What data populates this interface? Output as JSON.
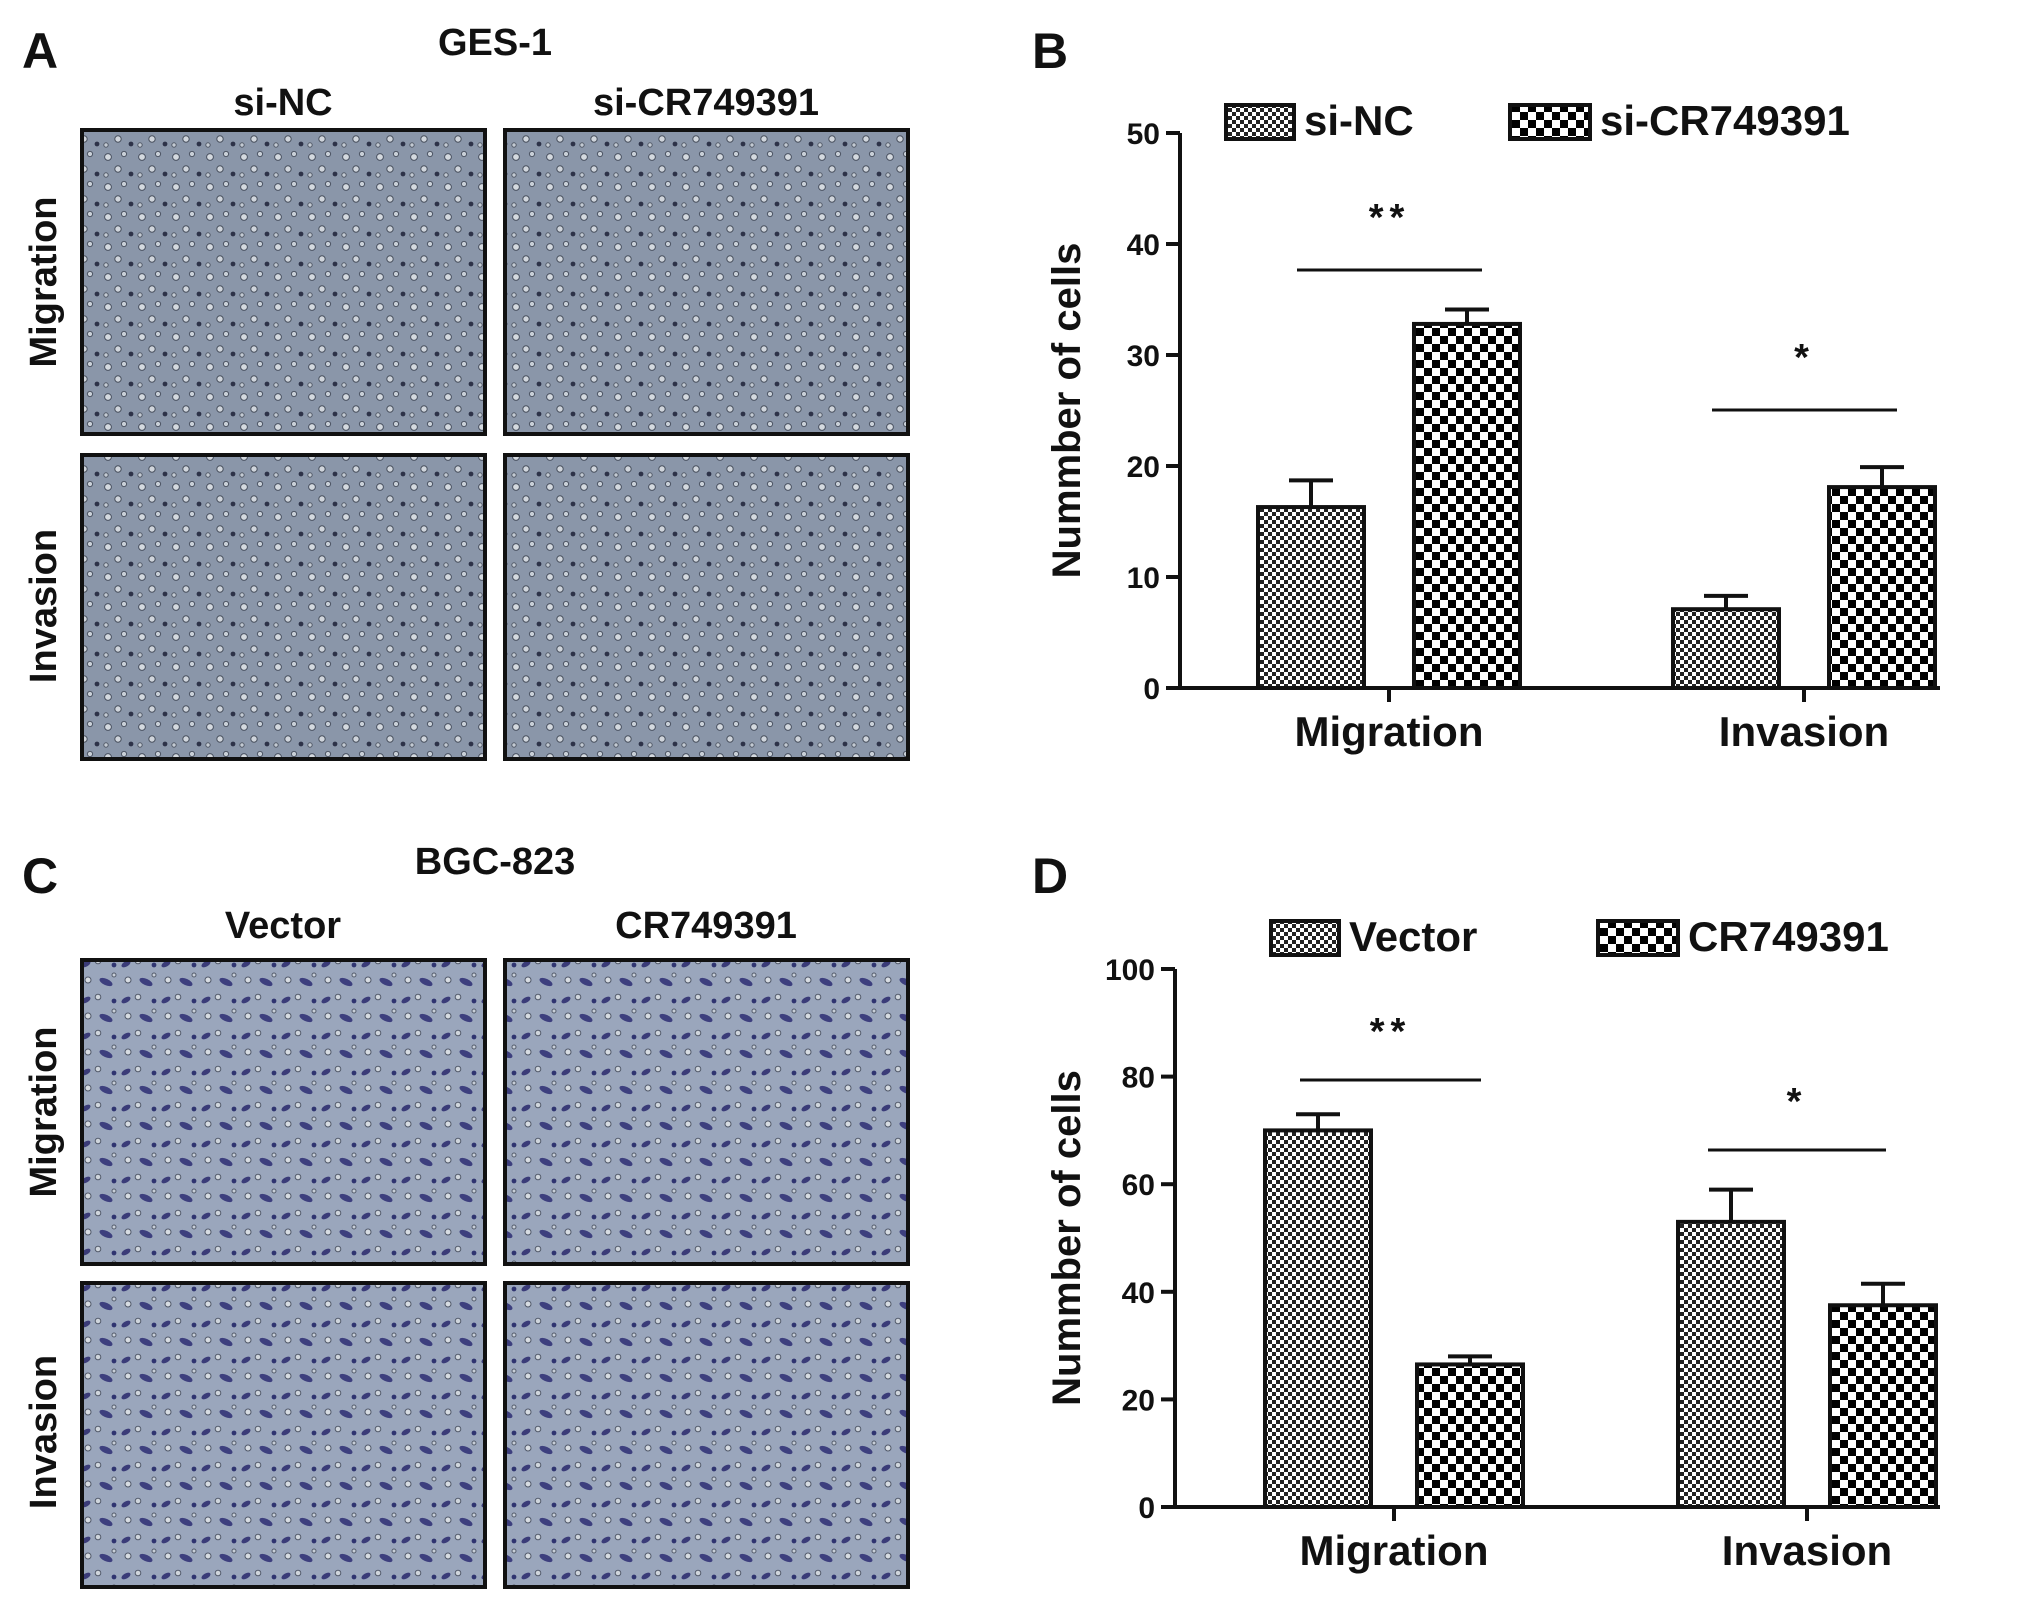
{
  "panels": {
    "A": {
      "letter": "A",
      "cell_line": "GES-1",
      "columns": [
        "si-NC",
        "si-CR749391"
      ],
      "rows": [
        "Migration",
        "Invasion"
      ]
    },
    "C": {
      "letter": "C",
      "cell_line": "BGC-823",
      "columns": [
        "Vector",
        "CR749391"
      ],
      "rows": [
        "Migration",
        "Invasion"
      ]
    }
  },
  "chart_data": [
    {
      "panel": "B",
      "type": "bar",
      "categories": [
        "Migration",
        "Invasion"
      ],
      "series": [
        {
          "name": "si-NC",
          "values": [
            16.3,
            7.1
          ],
          "errors": [
            2.4,
            1.2
          ]
        },
        {
          "name": "si-CR749391",
          "values": [
            32.8,
            18.1
          ],
          "errors": [
            1.3,
            1.8
          ]
        }
      ],
      "ylabel": "Nummber of cells",
      "ylim": [
        0,
        50
      ],
      "yticks": [
        "0",
        "10",
        "20",
        "30",
        "40",
        "50"
      ],
      "significance": [
        "**",
        "*"
      ],
      "legend_position": "top",
      "grid": false
    },
    {
      "panel": "D",
      "type": "bar",
      "categories": [
        "Migration",
        "Invasion"
      ],
      "series": [
        {
          "name": "Vector",
          "values": [
            70,
            53
          ],
          "errors": [
            3,
            6
          ]
        },
        {
          "name": "CR749391",
          "values": [
            26.5,
            37.5
          ],
          "errors": [
            1.5,
            4
          ]
        }
      ],
      "ylabel": "Nummber of cells",
      "ylim": [
        0,
        100
      ],
      "yticks": [
        "0",
        "20",
        "40",
        "60",
        "80",
        "100"
      ],
      "significance": [
        "**",
        "*"
      ],
      "legend_position": "top",
      "grid": false
    }
  ]
}
